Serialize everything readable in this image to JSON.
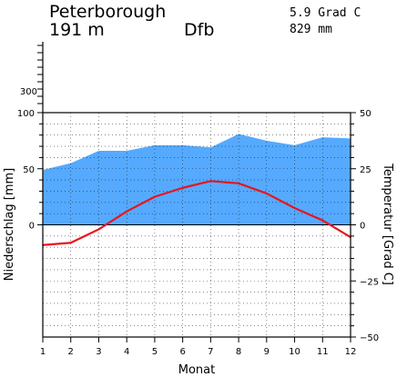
{
  "header": {
    "station": "Peterborough",
    "elevation": "191 m",
    "climate_class": "Dfb",
    "annual_temp": "5.9 Grad C",
    "annual_precip": "829 mm"
  },
  "colors": {
    "precip_fill": "#55aaff",
    "temp_line": "#e8141e",
    "grid": "#000000",
    "frame": "#000000"
  },
  "chart_data": {
    "type": "area",
    "categories": [
      "1",
      "2",
      "3",
      "4",
      "5",
      "6",
      "7",
      "8",
      "9",
      "10",
      "11",
      "12"
    ],
    "xlabel": "Monat",
    "y_left_label": "Niederschlag [mm]",
    "y_right_label": "Temperatur [Grad C]",
    "y_left_ticks": [
      "0",
      "50",
      "100"
    ],
    "y_left_upper_tick": "300",
    "y_right_ticks": [
      "50",
      "25",
      "0",
      "−25",
      "−50"
    ],
    "y_left_lim": [
      0,
      100
    ],
    "y_right_lim": [
      -50,
      50
    ],
    "grid": true,
    "series": [
      {
        "kind": "precipitation_mm",
        "values": [
          49,
          55,
          66,
          66,
          71,
          71,
          69,
          81,
          75,
          71,
          78,
          77
        ]
      },
      {
        "kind": "temperature_c",
        "values": [
          -9,
          -8,
          -2,
          6,
          12.5,
          16.5,
          19.5,
          18.5,
          14,
          7.5,
          2,
          -5.5
        ]
      }
    ]
  }
}
